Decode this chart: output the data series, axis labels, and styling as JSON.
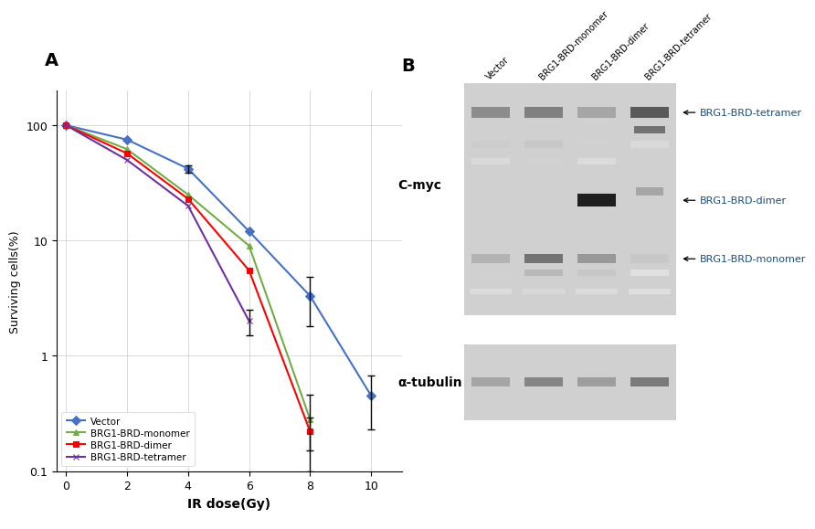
{
  "panel_A": {
    "x": [
      0,
      2,
      4,
      6,
      8,
      10
    ],
    "vector": {
      "y": [
        100,
        75,
        42,
        12,
        3.3,
        0.45
      ],
      "yerr": [
        0,
        0,
        3,
        0,
        1.5,
        0.22
      ],
      "color": "#4472C4",
      "marker": "D",
      "label": "Vector"
    },
    "monomer": {
      "y": [
        100,
        62,
        25,
        9,
        0.28,
        null
      ],
      "yerr": [
        0,
        0,
        0,
        0,
        0.18,
        0
      ],
      "color": "#70AD47",
      "marker": "^",
      "label": "BRG1-BRD-monomer"
    },
    "dimer": {
      "y": [
        100,
        57,
        23,
        5.5,
        0.22,
        null
      ],
      "yerr": [
        0,
        0,
        0,
        0,
        0.07,
        0
      ],
      "color": "#FF0000",
      "marker": "s",
      "label": "BRG1-BRD-dimer"
    },
    "tetramer": {
      "y": [
        100,
        50,
        20,
        2.0,
        null,
        null
      ],
      "yerr": [
        0,
        0,
        0,
        0.5,
        0,
        0
      ],
      "color": "#7030A0",
      "marker": "x",
      "label": "BRG1-BRD-tetramer"
    },
    "xlabel": "IR dose(Gy)",
    "ylabel": "Surviving cells(%)",
    "ylim": [
      0.1,
      200
    ],
    "xlim": [
      -0.3,
      11
    ]
  },
  "panel_B": {
    "col_labels": [
      "Vector",
      "BRG1-BRD-monomer",
      "BRG1-BRD-dimer",
      "BRG1-BRD-tetramer"
    ],
    "gel_bg": "#D5D5D5",
    "white_bg": "#FFFFFF",
    "arrow_labels": [
      "BRG1-BRD-tetramer",
      "BRG1-BRD-dimer",
      "BRG1-BRD-monomer"
    ],
    "cmyc_label": "C-myc",
    "tubulin_label": "α-tubulin",
    "label_color": "#1A4D7A"
  }
}
